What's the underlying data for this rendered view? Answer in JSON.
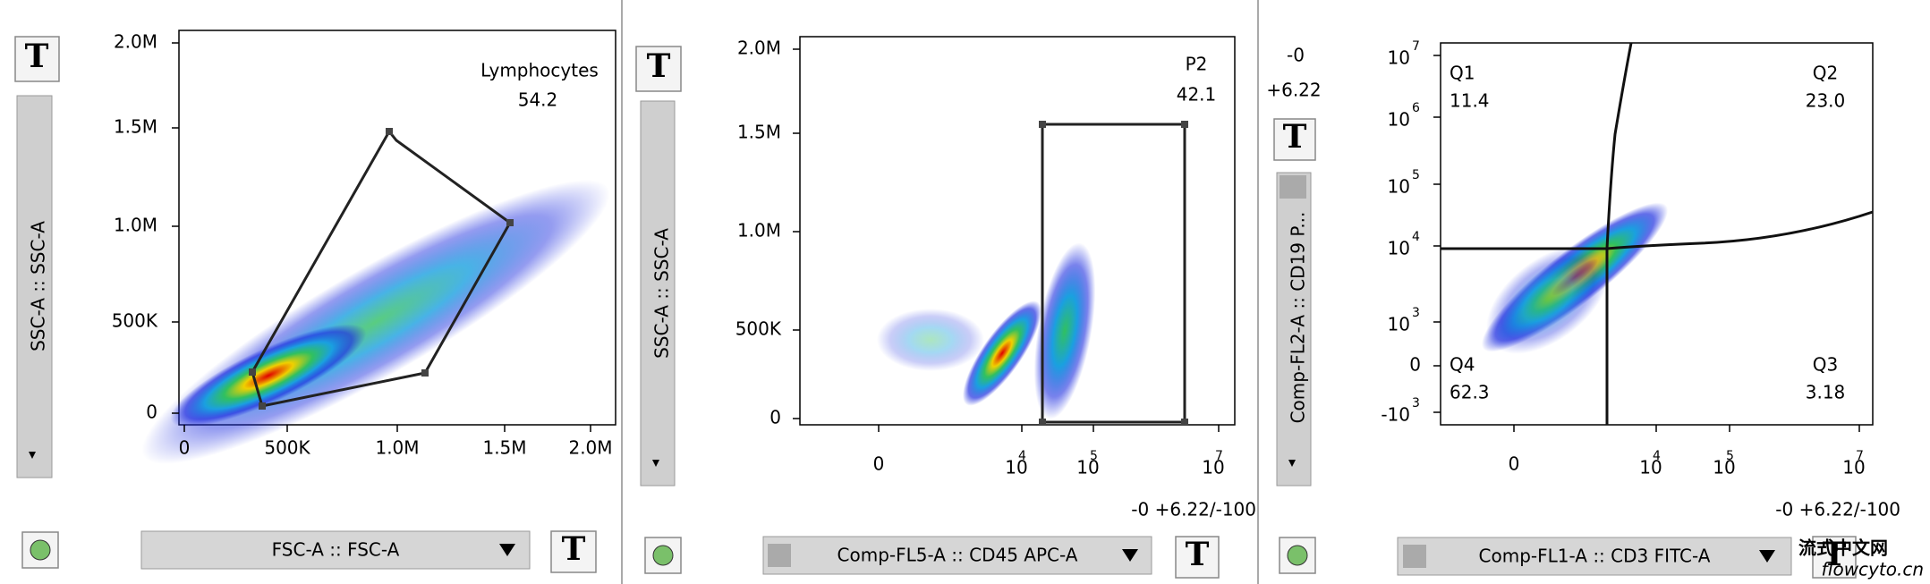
{
  "tool_button": "T",
  "panels": [
    {
      "y_axis": "SSC-A :: SSC-A",
      "x_axis": "FSC-A :: FSC-A",
      "y_ticks": [
        "2.0M",
        "1.5M",
        "1.0M",
        "500K",
        "0"
      ],
      "x_ticks": [
        "0",
        "500K",
        "1.0M",
        "1.5M",
        "2.0M"
      ],
      "gate": {
        "name": "Lymphocytes",
        "value": "54.2"
      }
    },
    {
      "y_axis": "SSC-A :: SSC-A",
      "x_axis": "Comp-FL5-A :: CD45 APC-A",
      "y_ticks": [
        "2.0M",
        "1.5M",
        "1.0M",
        "500K",
        "0"
      ],
      "x_ticks": [
        "0",
        {
          "base": "10",
          "exponent": "4"
        },
        {
          "base": "10",
          "exponent": "5"
        },
        {
          "base": "10",
          "exponent": "7"
        }
      ],
      "gate": {
        "name": "P2",
        "value": "42.1"
      },
      "range_note": "-0 +6.22/-100"
    },
    {
      "y_axis": "Comp-FL2-A :: CD19 P...",
      "x_axis": "Comp-FL1-A :: CD3 FITC-A",
      "top_labels": [
        "-0",
        "+6.22"
      ],
      "y_ticks": [
        {
          "base": "10",
          "exponent": "7"
        },
        {
          "base": "10",
          "exponent": "6"
        },
        {
          "base": "10",
          "exponent": "5"
        },
        {
          "base": "10",
          "exponent": "4"
        },
        {
          "base": "10",
          "exponent": "3"
        },
        "0",
        {
          "base": "-10",
          "exponent": "3"
        }
      ],
      "x_ticks": [
        "0",
        {
          "base": "10",
          "exponent": "4"
        },
        {
          "base": "10",
          "exponent": "5"
        },
        {
          "base": "10",
          "exponent": "7"
        }
      ],
      "quadrants": [
        {
          "name": "Q1",
          "value": "11.4"
        },
        {
          "name": "Q2",
          "value": "23.0"
        },
        {
          "name": "Q4",
          "value": "62.3"
        },
        {
          "name": "Q3",
          "value": "3.18"
        }
      ],
      "range_note": "-0 +6.22/-100"
    }
  ],
  "watermark": {
    "title": "流式中文网",
    "url": "flowcyto.cn"
  }
}
